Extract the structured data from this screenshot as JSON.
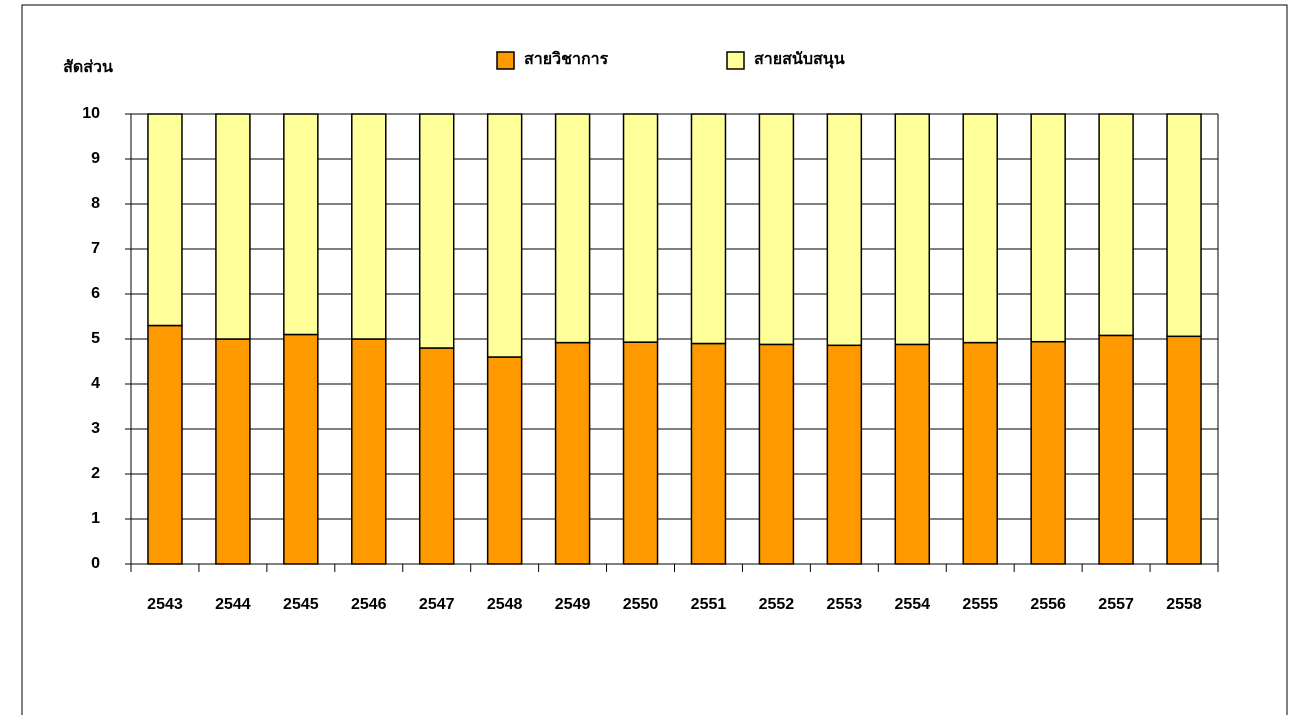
{
  "chart_data": {
    "type": "stacked_bar",
    "y_label": "สัดส่วน",
    "categories": [
      "2543",
      "2544",
      "2545",
      "2546",
      "2547",
      "2548",
      "2549",
      "2550",
      "2551",
      "2552",
      "2553",
      "2554",
      "2555",
      "2556",
      "2557",
      "2558"
    ],
    "series": [
      {
        "name": "สายวิชาการ",
        "color": "#FF9900",
        "values": [
          5.3,
          5.0,
          5.1,
          5.0,
          4.8,
          4.6,
          4.92,
          4.93,
          4.9,
          4.88,
          4.86,
          4.88,
          4.92,
          4.94,
          5.08,
          5.06
        ]
      },
      {
        "name": "สายสนับสนุน",
        "color": "#FFFF99",
        "values": [
          4.7,
          5.0,
          4.9,
          5.0,
          5.2,
          5.4,
          5.08,
          5.07,
          5.1,
          5.12,
          5.14,
          5.12,
          5.08,
          5.06,
          4.92,
          4.94
        ]
      }
    ],
    "ylim": [
      0,
      10
    ],
    "yticks": [
      0,
      1,
      2,
      3,
      4,
      5,
      6,
      7,
      8,
      9,
      10
    ],
    "grid": true,
    "legend": "top"
  }
}
